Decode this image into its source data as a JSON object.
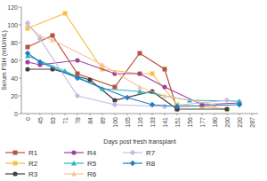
{
  "chart_data": {
    "type": "line",
    "x_label": "Days post fresh transplant",
    "y_label": "Serum FSH (mIU/mL)",
    "categories": [
      "0",
      "45",
      "63",
      "71",
      "78",
      "84",
      "89",
      "100",
      "105",
      "116",
      "133",
      "141",
      "151",
      "156",
      "177",
      "180",
      "200",
      "220",
      "287"
    ],
    "ylim": [
      0,
      120
    ],
    "yticks": [
      0,
      20,
      40,
      60,
      80,
      100,
      120
    ],
    "grid": false,
    "legend": "bottom",
    "series": [
      {
        "name": "R1",
        "color": "#b5533c",
        "marker": "square",
        "x": [
          "0",
          "63",
          "78",
          "100",
          "116",
          "141",
          "151"
        ],
        "values": [
          75,
          88,
          45,
          30,
          68,
          50,
          5
        ]
      },
      {
        "name": "R2",
        "color": "#f5c242",
        "marker": "square",
        "x": [
          "0",
          "71",
          "89",
          "116",
          "133",
          "151",
          "177",
          "200"
        ],
        "values": [
          96,
          113,
          50,
          45,
          45,
          10,
          8,
          5
        ]
      },
      {
        "name": "R3",
        "color": "#404040",
        "marker": "circle",
        "x": [
          "0",
          "63",
          "84",
          "100",
          "133",
          "151",
          "200"
        ],
        "values": [
          50,
          50,
          38,
          15,
          25,
          5,
          5
        ]
      },
      {
        "name": "R4",
        "color": "#a0409c",
        "marker": "circle",
        "x": [
          "0",
          "45",
          "78",
          "100",
          "116",
          "141",
          "177",
          "220"
        ],
        "values": [
          58,
          55,
          60,
          45,
          45,
          30,
          10,
          12
        ]
      },
      {
        "name": "R5",
        "color": "#2eb5b5",
        "marker": "triangle",
        "x": [
          "0",
          "71",
          "89",
          "116",
          "156",
          "220"
        ],
        "values": [
          65,
          48,
          28,
          25,
          15,
          14
        ]
      },
      {
        "name": "R6",
        "color": "#f7c59f",
        "marker": "triangle",
        "x": [
          "0",
          "45",
          "63",
          "89",
          "116",
          "141",
          "180"
        ],
        "values": [
          100,
          87,
          83,
          55,
          30,
          20,
          10
        ]
      },
      {
        "name": "R7",
        "color": "#c8b8e0",
        "marker": "diamond",
        "x": [
          "0",
          "45",
          "78",
          "100",
          "141",
          "200"
        ],
        "values": [
          102,
          84,
          20,
          10,
          8,
          15
        ]
      },
      {
        "name": "R8",
        "color": "#1f7cc7",
        "marker": "diamond",
        "x": [
          "0",
          "45",
          "78",
          "105",
          "133",
          "151",
          "220"
        ],
        "values": [
          68,
          58,
          40,
          18,
          10,
          8,
          10
        ]
      }
    ]
  }
}
